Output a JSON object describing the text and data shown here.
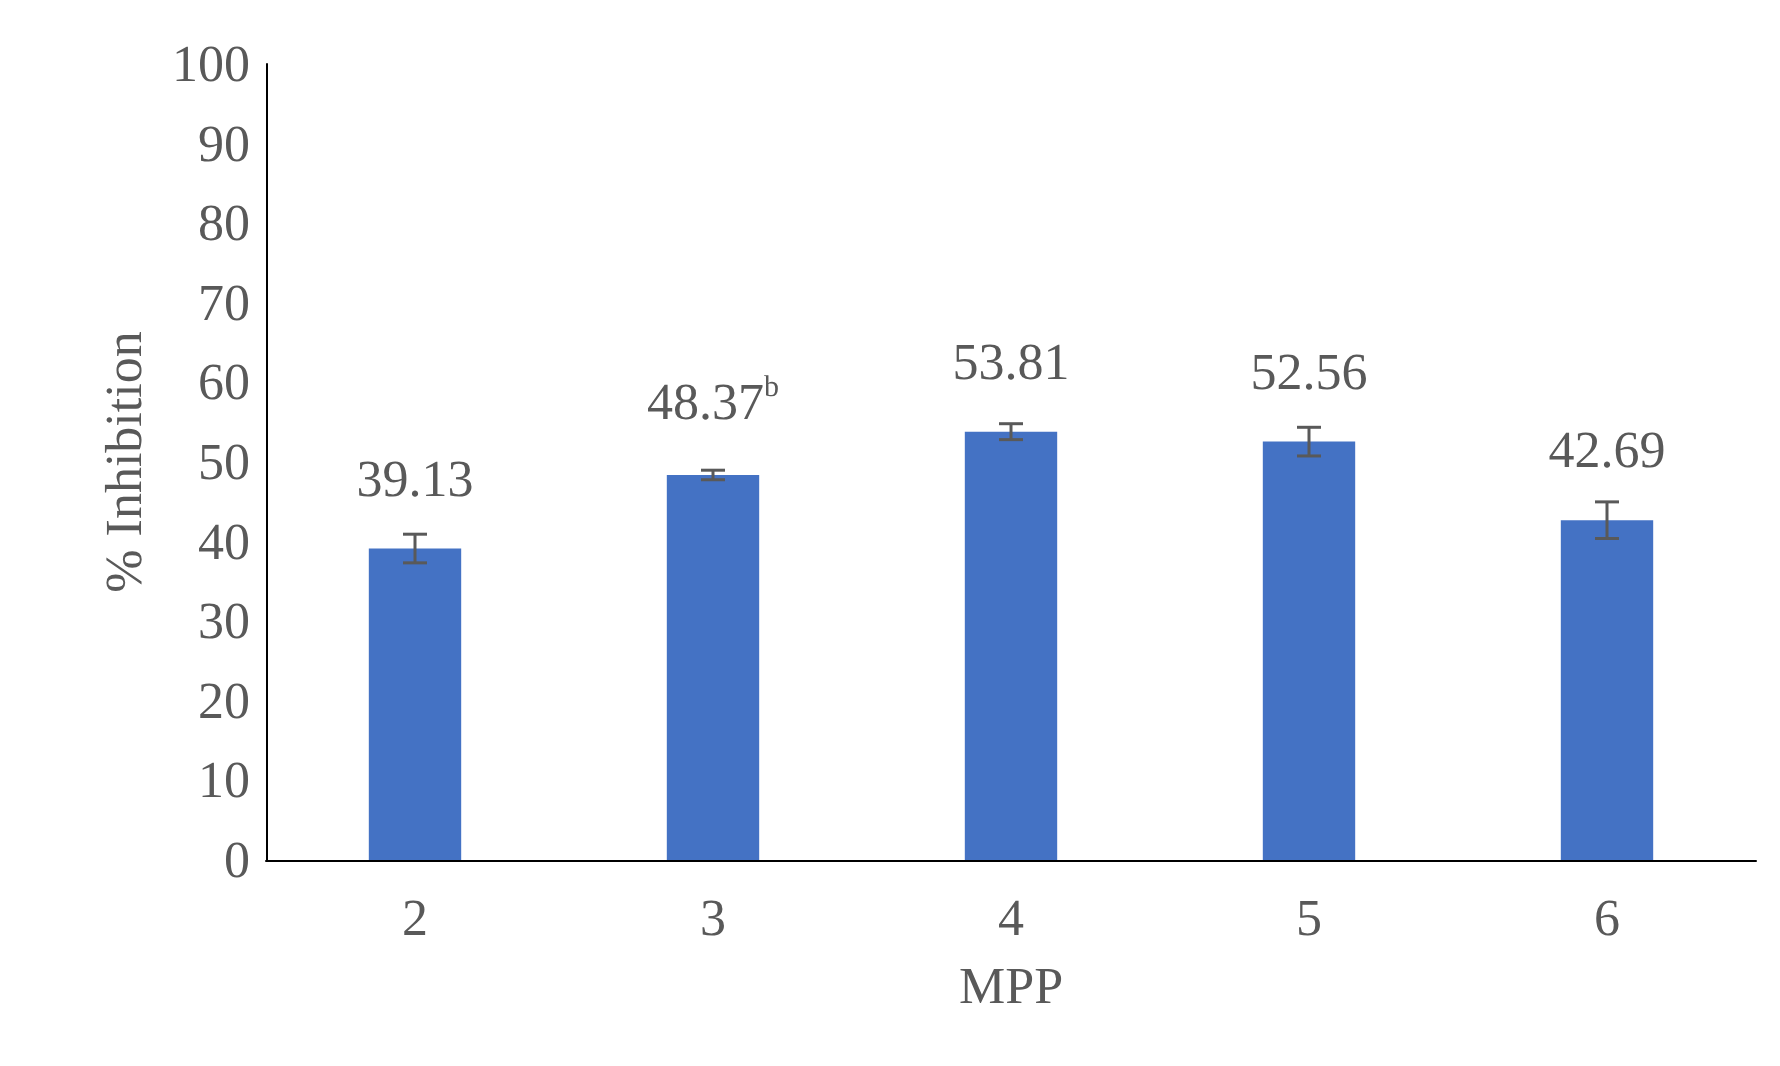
{
  "chart_data": {
    "type": "bar",
    "xlabel": "MPP",
    "ylabel": "% Inhibition",
    "categories": [
      "2",
      "3",
      "4",
      "5",
      "6"
    ],
    "values": [
      39.13,
      48.37,
      53.81,
      52.56,
      42.69
    ],
    "errors": [
      1.8,
      0.6,
      1.0,
      1.8,
      2.3
    ],
    "value_labels": [
      "39.13",
      "48.37$^{b}$",
      "53.81",
      "52.56",
      "42.69"
    ],
    "color": "#4472c4",
    "ylim": [
      0,
      100
    ],
    "yticks": [
      0,
      10,
      20,
      30,
      40,
      50,
      60,
      70,
      80,
      90,
      100
    ],
    "grid": false
  }
}
